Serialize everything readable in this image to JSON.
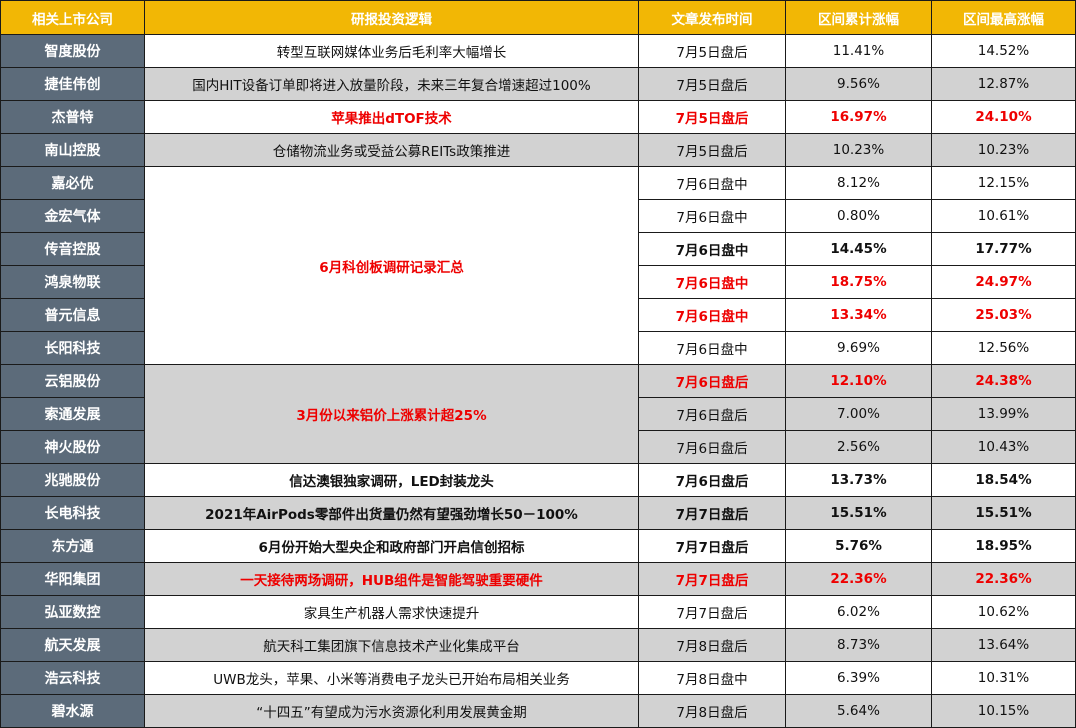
{
  "headers": [
    "相关上市公司",
    "研报投资逻辑",
    "文章发布时间",
    "区间累计涨幅",
    "区间最高涨幅"
  ],
  "rows": [
    {
      "company": "智度股份",
      "logic": "转型互联网媒体业务后毛利率大幅增长",
      "time": "7月5日盘后",
      "cum": "11.41%",
      "max": "14.52%"
    },
    {
      "company": "捷佳伟创",
      "logic": "国内HIT设备订单即将进入放量阶段，未来三年复合增速超过100%",
      "time": "7月5日盘后",
      "cum": "9.56%",
      "max": "12.87%"
    },
    {
      "company": "杰普特",
      "logic": "苹果推出dTOF技术",
      "time": "7月5日盘后",
      "cum": "16.97%",
      "max": "24.10%"
    },
    {
      "company": "南山控股",
      "logic": "仓储物流业务或受益公募REITs政策推进",
      "time": "7月5日盘后",
      "cum": "10.23%",
      "max": "10.23%"
    },
    {
      "company": "嘉必优",
      "logic": "6月科创板调研记录汇总",
      "time": "7月6日盘中",
      "cum": "8.12%",
      "max": "12.15%"
    },
    {
      "company": "金宏气体",
      "time": "7月6日盘中",
      "cum": "0.80%",
      "max": "10.61%"
    },
    {
      "company": "传音控股",
      "time": "7月6日盘中",
      "cum": "14.45%",
      "max": "17.77%"
    },
    {
      "company": "鸿泉物联",
      "time": "7月6日盘中",
      "cum": "18.75%",
      "max": "24.97%"
    },
    {
      "company": "普元信息",
      "time": "7月6日盘中",
      "cum": "13.34%",
      "max": "25.03%"
    },
    {
      "company": "长阳科技",
      "time": "7月6日盘中",
      "cum": "9.69%",
      "max": "12.56%"
    },
    {
      "company": "云铝股份",
      "logic": "3月份以来铝价上涨累计超25%",
      "time": "7月6日盘后",
      "cum": "12.10%",
      "max": "24.38%"
    },
    {
      "company": "索通发展",
      "time": "7月6日盘后",
      "cum": "7.00%",
      "max": "13.99%"
    },
    {
      "company": "神火股份",
      "time": "7月6日盘后",
      "cum": "2.56%",
      "max": "10.43%"
    },
    {
      "company": "兆驰股份",
      "logic": "信达澳银独家调研，LED封装龙头",
      "time": "7月6日盘后",
      "cum": "13.73%",
      "max": "18.54%"
    },
    {
      "company": "长电科技",
      "logic": "2021年AirPods零部件出货量仍然有望强劲增长50－100%",
      "time": "7月7日盘后",
      "cum": "15.51%",
      "max": "15.51%"
    },
    {
      "company": "东方通",
      "logic": "6月份开始大型央企和政府部门开启信创招标",
      "time": "7月7日盘后",
      "cum": "5.76%",
      "max": "18.95%"
    },
    {
      "company": "华阳集团",
      "logic": "一天接待两场调研，HUB组件是智能驾驶重要硬件",
      "time": "7月7日盘后",
      "cum": "22.36%",
      "max": "22.36%"
    },
    {
      "company": "弘亚数控",
      "logic": "家具生产机器人需求快速提升",
      "time": "7月7日盘后",
      "cum": "6.02%",
      "max": "10.62%"
    },
    {
      "company": "航天发展",
      "logic": "航天科工集团旗下信息技术产业化集成平台",
      "time": "7月8日盘后",
      "cum": "8.73%",
      "max": "13.64%"
    },
    {
      "company": "浩云科技",
      "logic": "UWB龙头，苹果、小米等消费电子龙头已开始布局相关业务",
      "time": "7月8日盘中",
      "cum": "6.39%",
      "max": "10.31%"
    },
    {
      "company": "碧水源",
      "logic": "“十四五”有望成为污水资源化利用发展黄金期",
      "time": "7月8日盘后",
      "cum": "5.64%",
      "max": "10.15%"
    }
  ],
  "colors": {
    "header_bg": "#f2b705",
    "company_bg": "#5c6b7a",
    "gray_row": "#d2d2d2",
    "highlight_red": "#ee0000"
  }
}
